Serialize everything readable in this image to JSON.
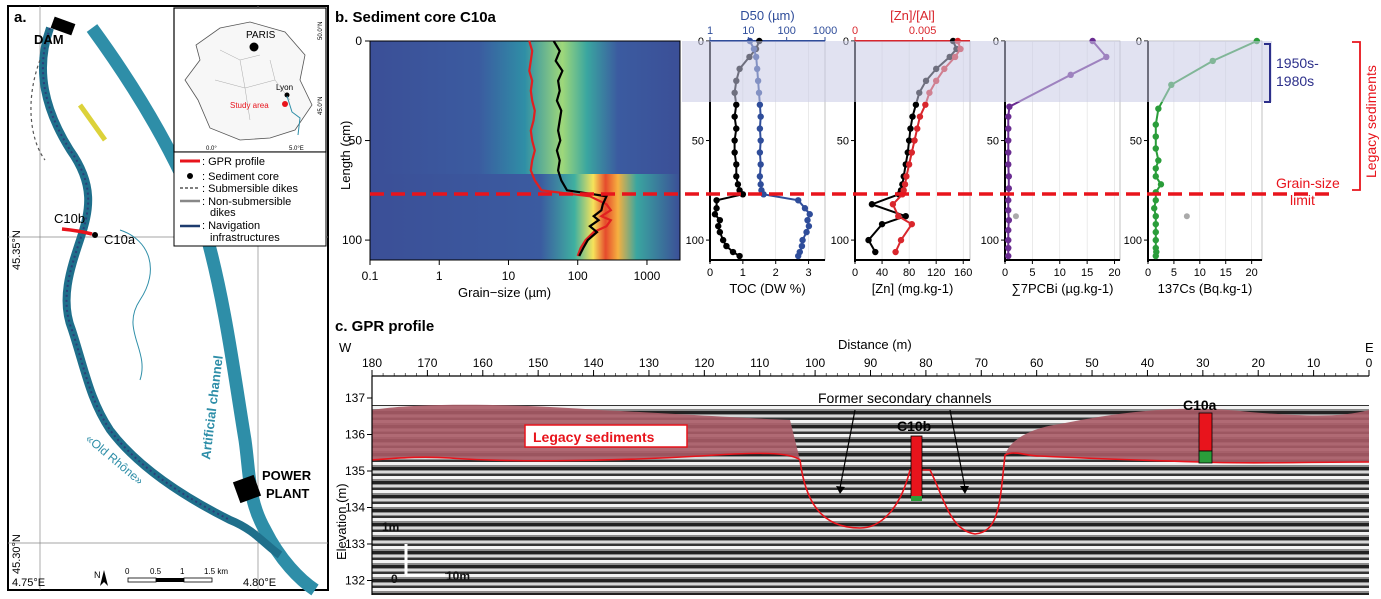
{
  "panel_a": {
    "label": "a.",
    "dam": "DAM",
    "power_plant": [
      "POWER",
      "PLANT"
    ],
    "artificial_channel": "Artificial channel",
    "old_rhone": "«Old Rhône»",
    "c10b": "C10b",
    "c10a": "C10a",
    "lat_4535": "45.35°N",
    "lat_4530": "45.30°N",
    "lon_475": "4.75°E",
    "lon_480": "4.80°E",
    "scale_ticks": [
      "0",
      "0.5",
      "1",
      "1.5 km"
    ],
    "north": "N",
    "inset": {
      "paris": "PARIS",
      "lyon": "Lyon",
      "study_area": "Study area",
      "lat50": "50.0°N",
      "lat45": "45.0°N",
      "lon0": "0.0°",
      "lon5": "5.0°E"
    },
    "legend": [
      {
        "key": "gpr",
        "label": ": GPR profile",
        "color": "#e8141c"
      },
      {
        "key": "core",
        "label": ": Sediment core",
        "color": "#000000"
      },
      {
        "key": "sub",
        "label": ": Submersible dikes",
        "color": "#555555"
      },
      {
        "key": "nonsub",
        "label": ": Non-submersible",
        "label2": "dikes",
        "color": "#888888"
      },
      {
        "key": "nav",
        "label": ": Navigation",
        "label2": "infrastructures",
        "color": "#1d3b6e"
      }
    ]
  },
  "panel_b": {
    "title": "b. Sediment core C10a",
    "ylabel": "Length (cm)",
    "heat_xlabel": "Grain−size (µm)",
    "heat_xticks": [
      "0.1",
      "1",
      "10",
      "100",
      "1000"
    ],
    "depth_ticks": [
      "0",
      "50",
      "100"
    ],
    "legacy_band_label": [
      "1950s-",
      "1980s"
    ],
    "legacy_sediments": "Legacy sediments",
    "grain_size_limit": [
      "Grain-size",
      "limit"
    ],
    "colors": {
      "legacy": "#2c2f8a",
      "limit": "#e8141c",
      "band": "#c9cbe6"
    }
  },
  "chart_data": [
    {
      "type": "heatmap",
      "title": "b. Sediment core C10a",
      "xlabel": "Grain−size (µm)",
      "ylabel": "Length (cm)",
      "xscale": "log",
      "xlim": [
        0.1,
        3000
      ],
      "ylim": [
        0,
        110
      ],
      "series": [
        {
          "name": "red",
          "color": "#e02020",
          "x": [
            20,
            22,
            21,
            20,
            22,
            21,
            22,
            24,
            23,
            21,
            22,
            24,
            22,
            21,
            24,
            30,
            150,
            260,
            300,
            220,
            300,
            260,
            170,
            130,
            110,
            100
          ],
          "y": [
            0,
            5,
            10,
            15,
            20,
            25,
            30,
            35,
            40,
            45,
            50,
            55,
            60,
            65,
            70,
            75,
            78,
            82,
            85,
            88,
            90,
            93,
            96,
            100,
            104,
            108
          ]
        },
        {
          "name": "black",
          "color": "#000000",
          "x": [
            45,
            55,
            48,
            60,
            52,
            55,
            50,
            58,
            55,
            52,
            56,
            50,
            55,
            52,
            58,
            70,
            260,
            230,
            220,
            170,
            200,
            150,
            190,
            140,
            120,
            105
          ],
          "y": [
            0,
            5,
            10,
            15,
            20,
            25,
            30,
            35,
            40,
            45,
            50,
            55,
            60,
            65,
            70,
            75,
            78,
            82,
            85,
            88,
            90,
            93,
            96,
            100,
            104,
            108
          ]
        }
      ]
    },
    {
      "type": "line",
      "xlabel": "TOC (DW %)",
      "x2label": "D50 (µm)",
      "xlim": [
        0,
        3.5
      ],
      "x2lim": [
        1,
        1000
      ],
      "x2scale": "log",
      "xticks": [
        "0",
        "1",
        "2",
        "3"
      ],
      "x2ticks": [
        "1",
        "10",
        "100",
        "1000"
      ],
      "series": [
        {
          "name": "TOC",
          "axis": "bottom",
          "color": "#000000",
          "x": [
            1.5,
            1.4,
            1.2,
            0.9,
            0.8,
            0.75,
            0.8,
            0.75,
            0.8,
            0.75,
            0.75,
            0.8,
            0.8,
            0.85,
            0.9,
            1.0,
            0.2,
            0.2,
            0.15,
            0.3,
            0.25,
            0.3,
            0.4,
            0.5,
            0.7,
            0.9
          ],
          "y": [
            0,
            4,
            8,
            14,
            20,
            26,
            32,
            38,
            44,
            50,
            56,
            62,
            68,
            72,
            75,
            77,
            80,
            84,
            87,
            90,
            93,
            96,
            100,
            103,
            106,
            108
          ]
        },
        {
          "name": "D50",
          "axis": "top",
          "color": "#2f4d9a",
          "x": [
            11,
            14,
            16,
            17,
            18,
            19,
            20,
            21,
            20,
            21,
            20,
            21,
            20,
            21,
            22,
            25,
            200,
            300,
            400,
            350,
            380,
            330,
            260,
            250,
            220,
            200
          ],
          "y": [
            0,
            4,
            8,
            14,
            20,
            26,
            32,
            38,
            44,
            50,
            56,
            62,
            68,
            72,
            75,
            77,
            80,
            84,
            87,
            90,
            93,
            96,
            100,
            103,
            106,
            108
          ]
        }
      ]
    },
    {
      "type": "line",
      "xlabel": "[Zn] (mg.kg-1)",
      "x2label": "[Zn]/[Al]",
      "xlim": [
        0,
        170
      ],
      "x2lim": [
        0,
        0.0085
      ],
      "xticks": [
        "0",
        "40",
        "80",
        "120",
        "160"
      ],
      "x2ticks": [
        "0",
        "0.005"
      ],
      "series": [
        {
          "name": "[Zn]",
          "axis": "bottom",
          "color": "#000000",
          "x": [
            145,
            150,
            140,
            120,
            105,
            95,
            90,
            85,
            82,
            80,
            78,
            75,
            72,
            70,
            68,
            65,
            25,
            75,
            40,
            20,
            30
          ],
          "y": [
            0,
            4,
            8,
            14,
            20,
            26,
            32,
            38,
            44,
            50,
            56,
            62,
            68,
            72,
            75,
            77,
            82,
            88,
            92,
            100,
            106
          ]
        },
        {
          "name": "[Zn]/[Al]",
          "axis": "top",
          "color": "#d9262c",
          "x": [
            0.0076,
            0.0078,
            0.0074,
            0.0066,
            0.006,
            0.0055,
            0.0052,
            0.0048,
            0.0046,
            0.0044,
            0.0042,
            0.004,
            0.0038,
            0.0037,
            0.0036,
            0.0035,
            0.0028,
            0.0032,
            0.0042,
            0.0034,
            0.003
          ],
          "y": [
            0,
            4,
            8,
            14,
            20,
            26,
            32,
            38,
            44,
            50,
            56,
            62,
            68,
            72,
            75,
            77,
            82,
            88,
            92,
            100,
            106
          ]
        }
      ]
    },
    {
      "type": "line",
      "xlabel": "∑7PCBi (µg.kg-1)",
      "xlim": [
        0,
        21
      ],
      "xticks": [
        "0",
        "5",
        "10",
        "15",
        "20"
      ],
      "series": [
        {
          "name": "PCB",
          "color": "#6a2c91",
          "x": [
            16,
            18.5,
            12,
            0.8,
            0.6,
            0.6,
            0.6,
            0.6,
            0.6,
            0.7,
            0.7,
            0.6,
            0.6,
            0.7,
            0.6,
            0.6,
            0.6,
            0.6
          ],
          "y": [
            0,
            8,
            17,
            33,
            38,
            44,
            50,
            56,
            62,
            68,
            74,
            80,
            85,
            90,
            95,
            100,
            104,
            108
          ]
        },
        {
          "name": "outlier",
          "color": "#aaaaaa",
          "x": [
            2
          ],
          "y": [
            88
          ]
        }
      ]
    },
    {
      "type": "line",
      "xlabel": "137Cs (Bq.kg-1)",
      "xlim": [
        0,
        22
      ],
      "xticks": [
        "0",
        "5",
        "10",
        "15",
        "20"
      ],
      "series": [
        {
          "name": "137Cs",
          "color": "#2a9d3a",
          "x": [
            21,
            12.5,
            4.5,
            2,
            1.5,
            1.5,
            1.5,
            2,
            1.5,
            1.5,
            2.5,
            1.5,
            1.5,
            1.2,
            1.5,
            1.5,
            1.5,
            1.5,
            1.5,
            1.6,
            1.5
          ],
          "y": [
            0,
            10,
            22,
            34,
            42,
            48,
            54,
            60,
            64,
            68,
            72,
            76,
            80,
            84,
            88,
            92,
            96,
            100,
            104,
            106,
            108
          ]
        },
        {
          "name": "outlier",
          "color": "#aaaaaa",
          "x": [
            7.5
          ],
          "y": [
            88
          ]
        }
      ]
    }
  ],
  "panel_c": {
    "title": "c. GPR profile",
    "distance_label": "Distance (m)",
    "west": "W",
    "east": "E",
    "elev_label": "Elevation (m)",
    "dist_ticks": [
      "180",
      "170",
      "160",
      "150",
      "140",
      "130",
      "120",
      "110",
      "100",
      "90",
      "80",
      "70",
      "60",
      "50",
      "40",
      "30",
      "20",
      "10",
      "0"
    ],
    "elev_ticks": [
      "137",
      "136",
      "135",
      "134",
      "133",
      "132"
    ],
    "legacy_box": "Legacy sediments",
    "former_channels": "Former secondary channels",
    "c10b": "C10b",
    "c10a": "C10a",
    "scale_v": "1m",
    "scale_h": "10m",
    "scale_origin": "0"
  }
}
